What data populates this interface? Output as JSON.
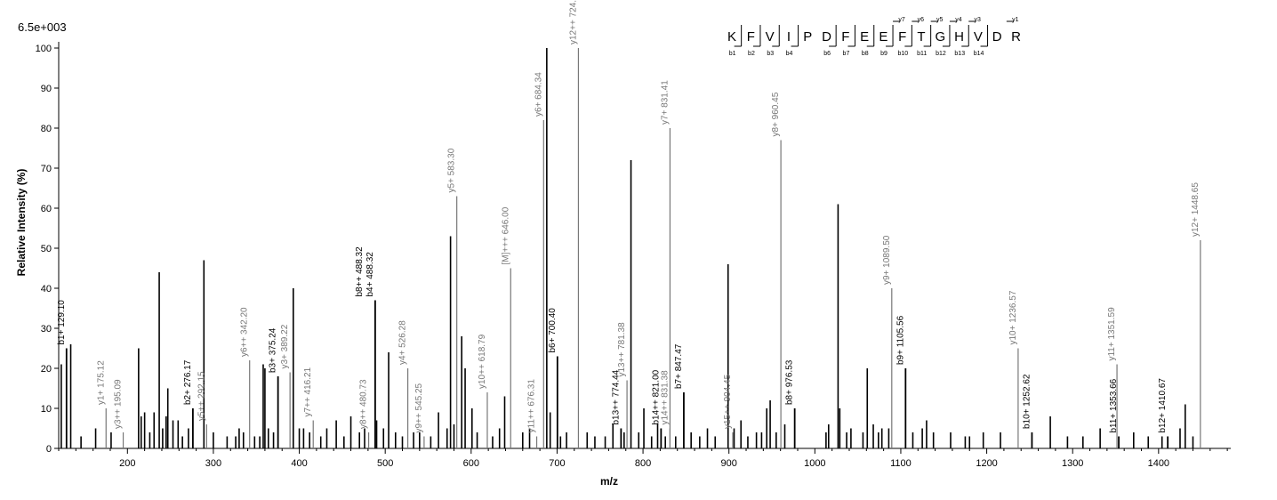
{
  "chart_data": {
    "type": "bar",
    "title": "",
    "scale_label": "6.5e+003",
    "xlabel": "m/z",
    "ylabel": "Relative   Intensity (%)",
    "xlim": [
      120,
      1484
    ],
    "ylim": [
      0,
      100
    ],
    "x_ticks": [
      200,
      300,
      400,
      500,
      600,
      700,
      800,
      900,
      1000,
      1100,
      1200,
      1300,
      1400
    ],
    "y_ticks": [
      0,
      10,
      20,
      30,
      40,
      50,
      60,
      70,
      80,
      90,
      100
    ],
    "colors": {
      "b_ion": "#000000",
      "y_ion": "#777777",
      "unmatched": "#000000"
    },
    "sequence": [
      "K",
      "F",
      "V",
      "I",
      "P",
      "D",
      "F",
      "E",
      "E",
      "F",
      "T",
      "G",
      "H",
      "V",
      "D",
      "R"
    ],
    "b_markers": [
      "b1",
      "b2",
      "b3",
      "b4",
      "b6",
      "b7",
      "b8",
      "b9",
      "b10",
      "b11",
      "b12",
      "b13",
      "b14"
    ],
    "y_markers": [
      "y7",
      "y6",
      "y5",
      "y4",
      "y3",
      "y1"
    ],
    "annotated_peaks": [
      {
        "mz": 129.1,
        "intensity": 25,
        "label": "b1+ 129.10",
        "ion": "b"
      },
      {
        "mz": 175.12,
        "intensity": 10,
        "label": "y1+ 175.12",
        "ion": "y"
      },
      {
        "mz": 195.09,
        "intensity": 4,
        "label": "y3++ 195.09",
        "ion": "y"
      },
      {
        "mz": 276.17,
        "intensity": 10,
        "label": "b2+ 276.17",
        "ion": "b"
      },
      {
        "mz": 292.15,
        "intensity": 6,
        "label": "y5++ 292.15",
        "ion": "y"
      },
      {
        "mz": 342.2,
        "intensity": 22,
        "label": "y6++ 342.20",
        "ion": "y"
      },
      {
        "mz": 375.24,
        "intensity": 18,
        "label": "b3+ 375.24",
        "ion": "b"
      },
      {
        "mz": 389.22,
        "intensity": 19,
        "label": "y3+ 389.22",
        "ion": "y"
      },
      {
        "mz": 416.21,
        "intensity": 7,
        "label": "y7++ 416.21",
        "ion": "y"
      },
      {
        "mz": 480.73,
        "intensity": 4,
        "label": "y8++ 480.73",
        "ion": "y"
      },
      {
        "mz": 488.32,
        "intensity": 37,
        "label": "b4+ 488.32",
        "ion": "b"
      },
      {
        "mz": 488.32,
        "intensity": 37,
        "label": "b8++ 488.32",
        "ion": "b"
      },
      {
        "mz": 526.28,
        "intensity": 20,
        "label": "y4+ 526.28",
        "ion": "y"
      },
      {
        "mz": 545.25,
        "intensity": 3,
        "label": "y9++ 545.25",
        "ion": "y"
      },
      {
        "mz": 583.3,
        "intensity": 63,
        "label": "y5+ 583.30",
        "ion": "y"
      },
      {
        "mz": 618.79,
        "intensity": 14,
        "label": "y10++ 618.79",
        "ion": "y"
      },
      {
        "mz": 646.0,
        "intensity": 45,
        "label": "[M]+++ 646.00",
        "ion": "y"
      },
      {
        "mz": 676.31,
        "intensity": 3,
        "label": "y11++ 676.31",
        "ion": "y"
      },
      {
        "mz": 684.34,
        "intensity": 82,
        "label": "y6+ 684.34",
        "ion": "y"
      },
      {
        "mz": 700.4,
        "intensity": 23,
        "label": "b6+ 700.40",
        "ion": "b"
      },
      {
        "mz": 724.83,
        "intensity": 100,
        "label": "y12++ 724.83",
        "ion": "y"
      },
      {
        "mz": 774.44,
        "intensity": 5,
        "label": "b13++ 774.44",
        "ion": "b"
      },
      {
        "mz": 781.38,
        "intensity": 17,
        "label": "y13++ 781.38",
        "ion": "y"
      },
      {
        "mz": 821.0,
        "intensity": 5,
        "label": "b14++ 821.00",
        "ion": "b"
      },
      {
        "mz": 831.38,
        "intensity": 5,
        "label": "y14++ 831.38",
        "ion": "y"
      },
      {
        "mz": 831.41,
        "intensity": 80,
        "label": "y7+ 831.41",
        "ion": "y"
      },
      {
        "mz": 847.47,
        "intensity": 14,
        "label": "b7+ 847.47",
        "ion": "b"
      },
      {
        "mz": 904.45,
        "intensity": 4,
        "label": "y15++ 904.45",
        "ion": "y"
      },
      {
        "mz": 960.45,
        "intensity": 77,
        "label": "y8+ 960.45",
        "ion": "y"
      },
      {
        "mz": 976.53,
        "intensity": 10,
        "label": "b8+ 976.53",
        "ion": "b"
      },
      {
        "mz": 1089.5,
        "intensity": 40,
        "label": "y9+ 1089.50",
        "ion": "y"
      },
      {
        "mz": 1105.56,
        "intensity": 20,
        "label": "b9+ 1105.56",
        "ion": "b"
      },
      {
        "mz": 1236.57,
        "intensity": 25,
        "label": "y10+ 1236.57",
        "ion": "y"
      },
      {
        "mz": 1252.62,
        "intensity": 4,
        "label": "b10+ 1252.62",
        "ion": "b"
      },
      {
        "mz": 1351.59,
        "intensity": 21,
        "label": "y11+ 1351.59",
        "ion": "y"
      },
      {
        "mz": 1353.66,
        "intensity": 3,
        "label": "b11+ 1353.66",
        "ion": "b"
      },
      {
        "mz": 1410.67,
        "intensity": 3,
        "label": "b12+ 1410.67",
        "ion": "b"
      },
      {
        "mz": 1448.65,
        "intensity": 52,
        "label": "y12+ 1448.65",
        "ion": "y"
      }
    ],
    "unannotated_peaks": [
      {
        "mz": 123,
        "intensity": 21
      },
      {
        "mz": 134,
        "intensity": 26
      },
      {
        "mz": 146,
        "intensity": 3
      },
      {
        "mz": 163,
        "intensity": 5
      },
      {
        "mz": 181,
        "intensity": 4
      },
      {
        "mz": 213,
        "intensity": 25
      },
      {
        "mz": 216,
        "intensity": 8
      },
      {
        "mz": 220,
        "intensity": 9
      },
      {
        "mz": 226,
        "intensity": 4
      },
      {
        "mz": 231,
        "intensity": 9
      },
      {
        "mz": 237,
        "intensity": 44
      },
      {
        "mz": 241,
        "intensity": 5
      },
      {
        "mz": 245,
        "intensity": 8
      },
      {
        "mz": 247,
        "intensity": 15
      },
      {
        "mz": 253,
        "intensity": 7
      },
      {
        "mz": 259,
        "intensity": 7
      },
      {
        "mz": 264,
        "intensity": 3
      },
      {
        "mz": 271,
        "intensity": 5
      },
      {
        "mz": 289,
        "intensity": 47
      },
      {
        "mz": 300,
        "intensity": 4
      },
      {
        "mz": 316,
        "intensity": 3
      },
      {
        "mz": 326,
        "intensity": 3
      },
      {
        "mz": 330,
        "intensity": 5
      },
      {
        "mz": 335,
        "intensity": 4
      },
      {
        "mz": 348,
        "intensity": 3
      },
      {
        "mz": 354,
        "intensity": 3
      },
      {
        "mz": 358,
        "intensity": 21
      },
      {
        "mz": 360,
        "intensity": 20
      },
      {
        "mz": 364,
        "intensity": 5
      },
      {
        "mz": 370,
        "intensity": 4
      },
      {
        "mz": 393,
        "intensity": 40
      },
      {
        "mz": 400,
        "intensity": 5
      },
      {
        "mz": 405,
        "intensity": 5
      },
      {
        "mz": 412,
        "intensity": 4
      },
      {
        "mz": 425,
        "intensity": 3
      },
      {
        "mz": 432,
        "intensity": 5
      },
      {
        "mz": 443,
        "intensity": 7
      },
      {
        "mz": 452,
        "intensity": 3
      },
      {
        "mz": 460,
        "intensity": 8
      },
      {
        "mz": 470,
        "intensity": 4
      },
      {
        "mz": 476,
        "intensity": 5
      },
      {
        "mz": 490,
        "intensity": 7
      },
      {
        "mz": 498,
        "intensity": 5
      },
      {
        "mz": 504,
        "intensity": 24
      },
      {
        "mz": 512,
        "intensity": 4
      },
      {
        "mz": 520,
        "intensity": 3
      },
      {
        "mz": 533,
        "intensity": 4
      },
      {
        "mz": 540,
        "intensity": 4
      },
      {
        "mz": 553,
        "intensity": 3
      },
      {
        "mz": 562,
        "intensity": 9
      },
      {
        "mz": 572,
        "intensity": 5
      },
      {
        "mz": 576,
        "intensity": 53
      },
      {
        "mz": 580,
        "intensity": 6
      },
      {
        "mz": 589,
        "intensity": 28
      },
      {
        "mz": 593,
        "intensity": 20
      },
      {
        "mz": 601,
        "intensity": 10
      },
      {
        "mz": 607,
        "intensity": 4
      },
      {
        "mz": 625,
        "intensity": 3
      },
      {
        "mz": 633,
        "intensity": 5
      },
      {
        "mz": 639,
        "intensity": 13
      },
      {
        "mz": 660,
        "intensity": 4
      },
      {
        "mz": 668,
        "intensity": 5
      },
      {
        "mz": 688,
        "intensity": 100
      },
      {
        "mz": 692,
        "intensity": 9
      },
      {
        "mz": 704,
        "intensity": 3
      },
      {
        "mz": 711,
        "intensity": 4
      },
      {
        "mz": 735,
        "intensity": 4
      },
      {
        "mz": 744,
        "intensity": 3
      },
      {
        "mz": 756,
        "intensity": 3
      },
      {
        "mz": 765,
        "intensity": 6
      },
      {
        "mz": 778,
        "intensity": 4
      },
      {
        "mz": 786,
        "intensity": 72
      },
      {
        "mz": 795,
        "intensity": 4
      },
      {
        "mz": 801,
        "intensity": 10
      },
      {
        "mz": 810,
        "intensity": 3
      },
      {
        "mz": 817,
        "intensity": 6
      },
      {
        "mz": 826,
        "intensity": 3
      },
      {
        "mz": 838,
        "intensity": 3
      },
      {
        "mz": 856,
        "intensity": 4
      },
      {
        "mz": 866,
        "intensity": 3
      },
      {
        "mz": 875,
        "intensity": 5
      },
      {
        "mz": 884,
        "intensity": 3
      },
      {
        "mz": 899,
        "intensity": 46
      },
      {
        "mz": 906,
        "intensity": 5
      },
      {
        "mz": 914,
        "intensity": 7
      },
      {
        "mz": 922,
        "intensity": 3
      },
      {
        "mz": 932,
        "intensity": 4
      },
      {
        "mz": 938,
        "intensity": 4
      },
      {
        "mz": 944,
        "intensity": 10
      },
      {
        "mz": 948,
        "intensity": 12
      },
      {
        "mz": 955,
        "intensity": 4
      },
      {
        "mz": 965,
        "intensity": 6
      },
      {
        "mz": 1013,
        "intensity": 4
      },
      {
        "mz": 1016,
        "intensity": 6
      },
      {
        "mz": 1027,
        "intensity": 61
      },
      {
        "mz": 1029,
        "intensity": 10
      },
      {
        "mz": 1037,
        "intensity": 4
      },
      {
        "mz": 1042,
        "intensity": 5
      },
      {
        "mz": 1056,
        "intensity": 4
      },
      {
        "mz": 1061,
        "intensity": 20
      },
      {
        "mz": 1068,
        "intensity": 6
      },
      {
        "mz": 1074,
        "intensity": 4
      },
      {
        "mz": 1078,
        "intensity": 5
      },
      {
        "mz": 1086,
        "intensity": 5
      },
      {
        "mz": 1114,
        "intensity": 4
      },
      {
        "mz": 1125,
        "intensity": 5
      },
      {
        "mz": 1130,
        "intensity": 7
      },
      {
        "mz": 1138,
        "intensity": 4
      },
      {
        "mz": 1158,
        "intensity": 4
      },
      {
        "mz": 1175,
        "intensity": 3
      },
      {
        "mz": 1180,
        "intensity": 3
      },
      {
        "mz": 1196,
        "intensity": 4
      },
      {
        "mz": 1216,
        "intensity": 4
      },
      {
        "mz": 1274,
        "intensity": 8
      },
      {
        "mz": 1294,
        "intensity": 3
      },
      {
        "mz": 1312,
        "intensity": 3
      },
      {
        "mz": 1332,
        "intensity": 5
      },
      {
        "mz": 1371,
        "intensity": 4
      },
      {
        "mz": 1388,
        "intensity": 3
      },
      {
        "mz": 1404,
        "intensity": 3
      },
      {
        "mz": 1425,
        "intensity": 5
      },
      {
        "mz": 1431,
        "intensity": 11
      },
      {
        "mz": 1440,
        "intensity": 3
      }
    ]
  }
}
